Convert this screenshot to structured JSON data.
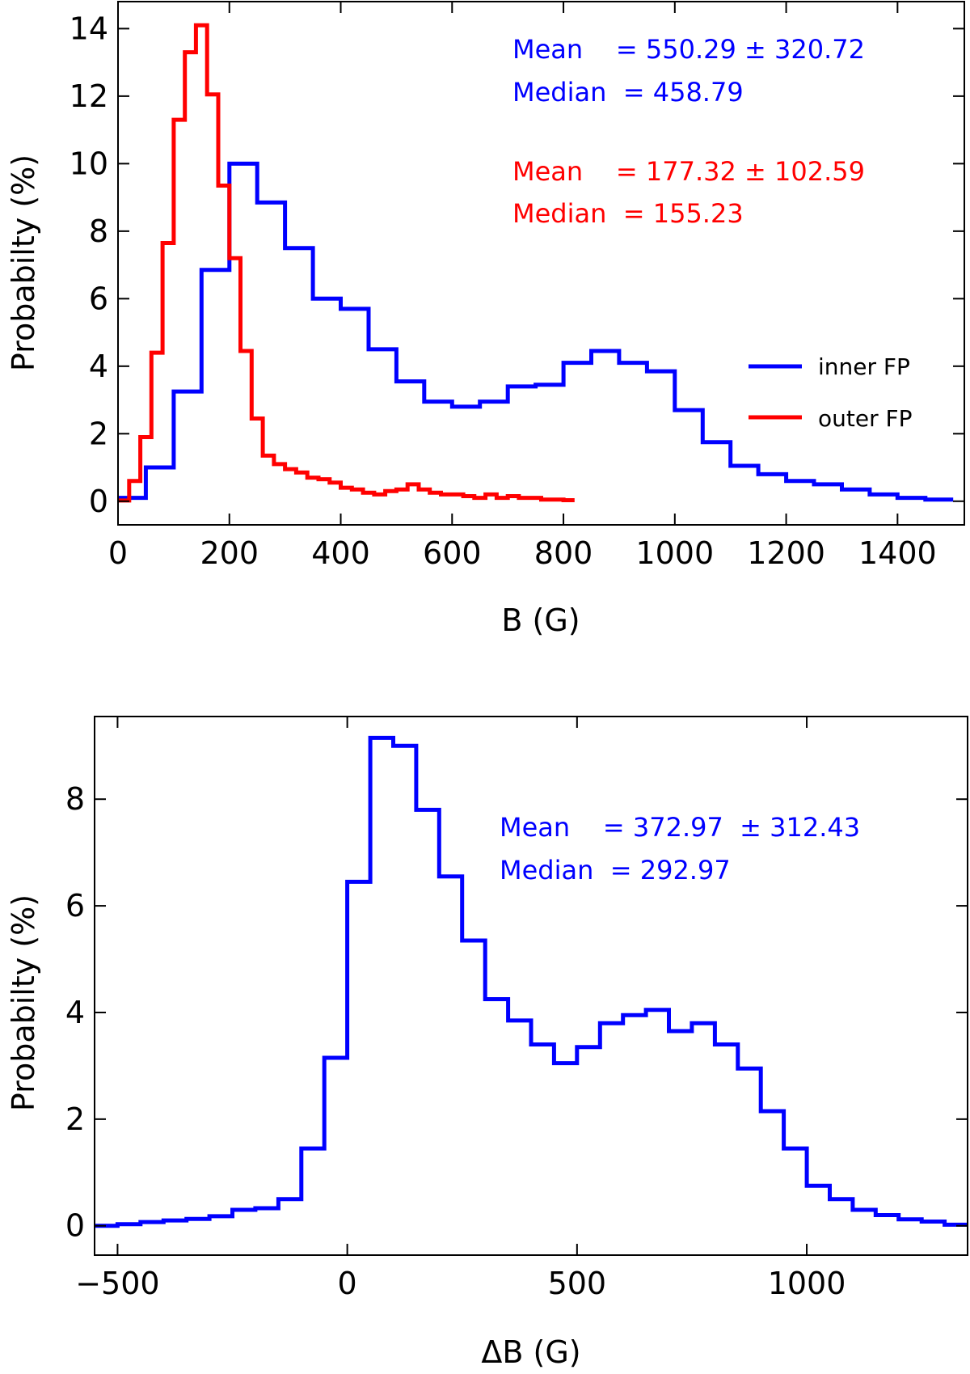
{
  "chart_data": [
    {
      "type": "line",
      "step": true,
      "xlabel": "B (G)",
      "ylabel": "Probabilty (%)",
      "xlim": [
        0,
        1520
      ],
      "ylim": [
        -0.7,
        14.8
      ],
      "xticks": [
        0,
        200,
        400,
        600,
        800,
        1000,
        1200,
        1400
      ],
      "yticks": [
        0,
        2,
        4,
        6,
        8,
        10,
        12,
        14
      ],
      "grid": false,
      "legend_position": "middle-right",
      "series": [
        {
          "name": "inner FP",
          "color": "#0000ff",
          "bin_width": 50,
          "x": [
            0,
            50,
            100,
            150,
            200,
            250,
            300,
            350,
            400,
            450,
            500,
            550,
            600,
            650,
            700,
            750,
            800,
            850,
            900,
            950,
            1000,
            1050,
            1100,
            1150,
            1200,
            1250,
            1300,
            1350,
            1400,
            1450
          ],
          "values": [
            0.1,
            1.0,
            3.25,
            6.85,
            10.0,
            8.85,
            7.5,
            6.0,
            5.7,
            4.5,
            3.55,
            2.95,
            2.8,
            2.95,
            3.4,
            3.45,
            4.1,
            4.45,
            4.1,
            3.85,
            2.7,
            1.75,
            1.05,
            0.8,
            0.6,
            0.5,
            0.35,
            0.2,
            0.1,
            0.05
          ]
        },
        {
          "name": "outer FP",
          "color": "#ff0000",
          "bin_width": 20,
          "x": [
            0,
            20,
            40,
            60,
            80,
            100,
            120,
            140,
            160,
            180,
            200,
            220,
            240,
            260,
            280,
            300,
            320,
            340,
            360,
            380,
            400,
            420,
            440,
            460,
            480,
            500,
            520,
            540,
            560,
            580,
            600,
            620,
            640,
            660,
            680,
            700,
            720,
            740,
            760,
            780,
            800
          ],
          "values": [
            0.02,
            0.6,
            1.9,
            4.4,
            7.65,
            11.3,
            13.3,
            14.1,
            12.05,
            9.35,
            7.2,
            4.45,
            2.45,
            1.35,
            1.1,
            0.95,
            0.85,
            0.7,
            0.65,
            0.55,
            0.4,
            0.35,
            0.25,
            0.2,
            0.3,
            0.35,
            0.5,
            0.35,
            0.25,
            0.2,
            0.2,
            0.15,
            0.1,
            0.2,
            0.1,
            0.15,
            0.1,
            0.1,
            0.05,
            0.05,
            0.03
          ]
        }
      ],
      "annotations": [
        {
          "text": "Mean    = 550.29 ± 320.72",
          "color": "#0000ff"
        },
        {
          "text": "Median  = 458.79",
          "color": "#0000ff"
        },
        {
          "text": "Mean    = 177.32 ± 102.59",
          "color": "#ff0000"
        },
        {
          "text": "Median  = 155.23",
          "color": "#ff0000"
        }
      ]
    },
    {
      "type": "line",
      "step": true,
      "xlabel": "ΔB (G)",
      "ylabel": "Probabilty (%)",
      "xlim": [
        -550,
        1350
      ],
      "ylim": [
        -0.55,
        9.55
      ],
      "xticks": [
        -500,
        0,
        500,
        1000
      ],
      "xtick_labels": [
        "−500",
        "0",
        "500",
        "1000"
      ],
      "yticks": [
        0,
        2,
        4,
        6,
        8
      ],
      "grid": false,
      "series": [
        {
          "color": "#0000ff",
          "bin_width": 50,
          "x": [
            -550,
            -500,
            -450,
            -400,
            -350,
            -300,
            -250,
            -200,
            -150,
            -100,
            -50,
            0,
            50,
            100,
            150,
            200,
            250,
            300,
            350,
            400,
            450,
            500,
            550,
            600,
            650,
            700,
            750,
            800,
            850,
            900,
            950,
            1000,
            1050,
            1100,
            1150,
            1200,
            1250,
            1300
          ],
          "values": [
            0.0,
            0.03,
            0.07,
            0.1,
            0.13,
            0.18,
            0.3,
            0.33,
            0.5,
            1.45,
            3.15,
            6.45,
            9.15,
            9.0,
            7.8,
            6.55,
            5.35,
            4.25,
            3.85,
            3.4,
            3.05,
            3.35,
            3.8,
            3.95,
            4.05,
            3.65,
            3.8,
            3.4,
            2.95,
            2.15,
            1.45,
            0.75,
            0.5,
            0.3,
            0.2,
            0.12,
            0.08,
            0.02
          ]
        }
      ],
      "annotations": [
        {
          "text": "Mean    = 372.97  ± 312.43",
          "color": "#0000ff"
        },
        {
          "text": "Median  = 292.97",
          "color": "#0000ff"
        }
      ]
    }
  ]
}
